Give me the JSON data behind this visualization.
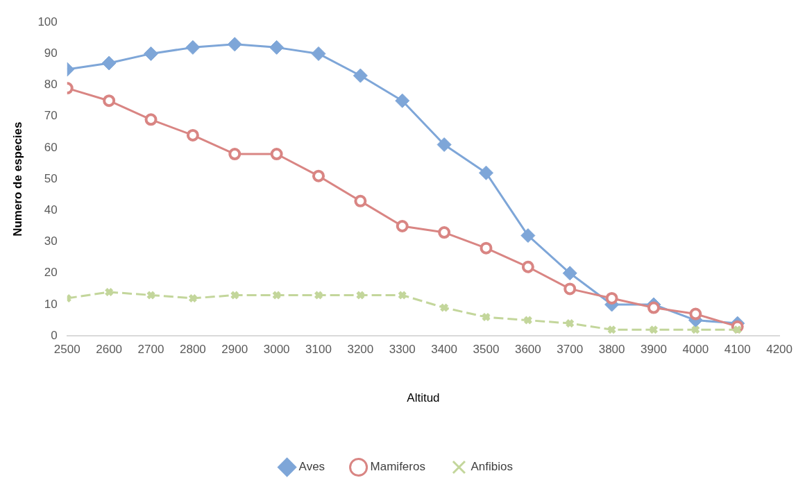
{
  "chart_data": {
    "type": "line",
    "xlabel": "Altitud",
    "ylabel": "Numero de especies",
    "x": [
      2500,
      2600,
      2700,
      2800,
      2900,
      3000,
      3100,
      3200,
      3300,
      3400,
      3500,
      3600,
      3700,
      3800,
      3900,
      4000,
      4100
    ],
    "xlim": [
      2500,
      4200
    ],
    "xticks": [
      2500,
      2600,
      2700,
      2800,
      2900,
      3000,
      3100,
      3200,
      3300,
      3400,
      3500,
      3600,
      3700,
      3800,
      3900,
      4000,
      4100,
      4200
    ],
    "ylim": [
      0,
      100
    ],
    "yticks": [
      0,
      10,
      20,
      30,
      40,
      50,
      60,
      70,
      80,
      90,
      100
    ],
    "grid": false,
    "legend": "bottom",
    "series": [
      {
        "name": "Aves",
        "color": "#7ea6d8",
        "marker": "diamond",
        "line_style": "solid",
        "values": [
          85,
          87,
          90,
          92,
          93,
          92,
          90,
          83,
          75,
          61,
          52,
          32,
          20,
          10,
          10,
          5,
          4
        ]
      },
      {
        "name": "Mamiferos",
        "color": "#d98583",
        "marker": "circle",
        "line_style": "solid",
        "values": [
          79,
          75,
          69,
          64,
          58,
          58,
          51,
          43,
          35,
          33,
          28,
          22,
          15,
          12,
          9,
          7,
          3
        ]
      },
      {
        "name": "Anfibios",
        "color": "#c3d69b",
        "marker": "cross",
        "line_style": "dashed",
        "values": [
          12,
          14,
          13,
          12,
          13,
          13,
          13,
          13,
          13,
          9,
          6,
          5,
          4,
          2,
          2,
          2,
          2
        ]
      }
    ]
  }
}
